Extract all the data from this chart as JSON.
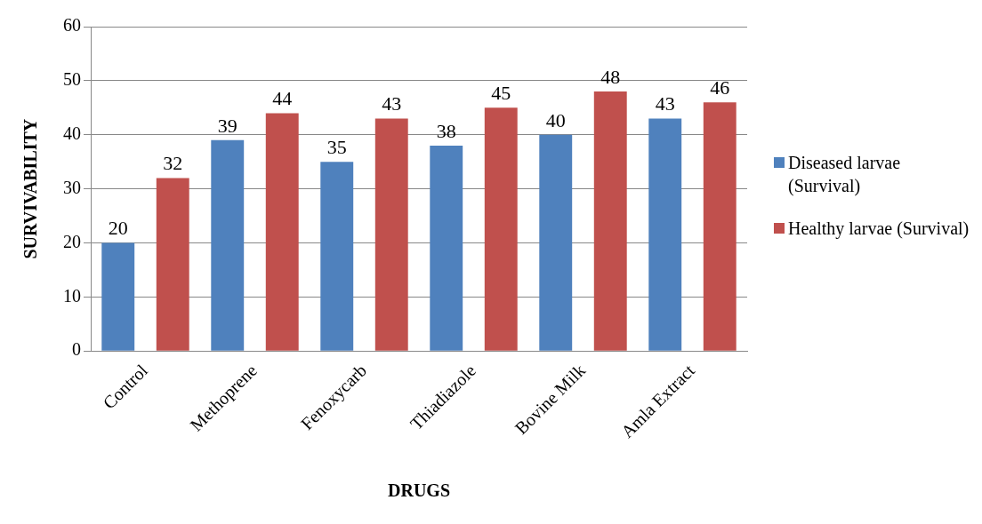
{
  "chart_data": {
    "type": "bar",
    "xlabel": "DRUGS",
    "ylabel": "SURVIVABILITY",
    "categories": [
      "Control",
      "Methoprene",
      "Fenoxycarb",
      "Thiadiazole",
      "Bovine Milk",
      "Amla Extract"
    ],
    "series": [
      {
        "name": "Diseased larvae (Survival)",
        "color": "#4f81bd",
        "values": [
          20,
          39,
          35,
          38,
          40,
          43
        ]
      },
      {
        "name": "Healthy larvae (Survival)",
        "color": "#c0504d",
        "values": [
          32,
          44,
          43,
          45,
          48,
          46
        ]
      }
    ],
    "ylim": [
      0,
      60
    ],
    "yticks": [
      0,
      10,
      20,
      30,
      40,
      50,
      60
    ],
    "grid": "y",
    "legend": "right",
    "data_labels": true
  }
}
